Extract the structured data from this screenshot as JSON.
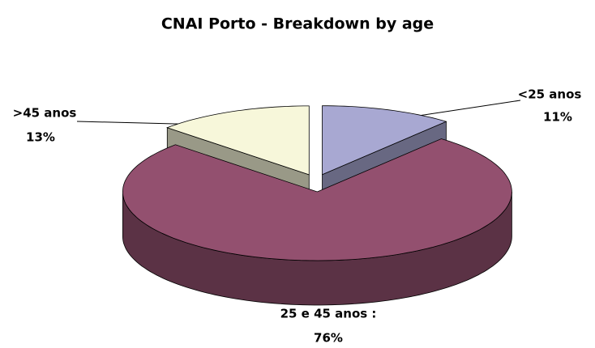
{
  "chart_data": {
    "type": "pie3d",
    "title": "CNAI Porto - Breakdown by age",
    "categories": [
      "<25 anos",
      "25 e 45 anos :",
      ">45 anos"
    ],
    "values": [
      11,
      76,
      13
    ],
    "value_labels": [
      "11%",
      "76%",
      "13%"
    ],
    "colors": [
      "#a8a8d2",
      "#93506f",
      "#f7f7da"
    ]
  }
}
